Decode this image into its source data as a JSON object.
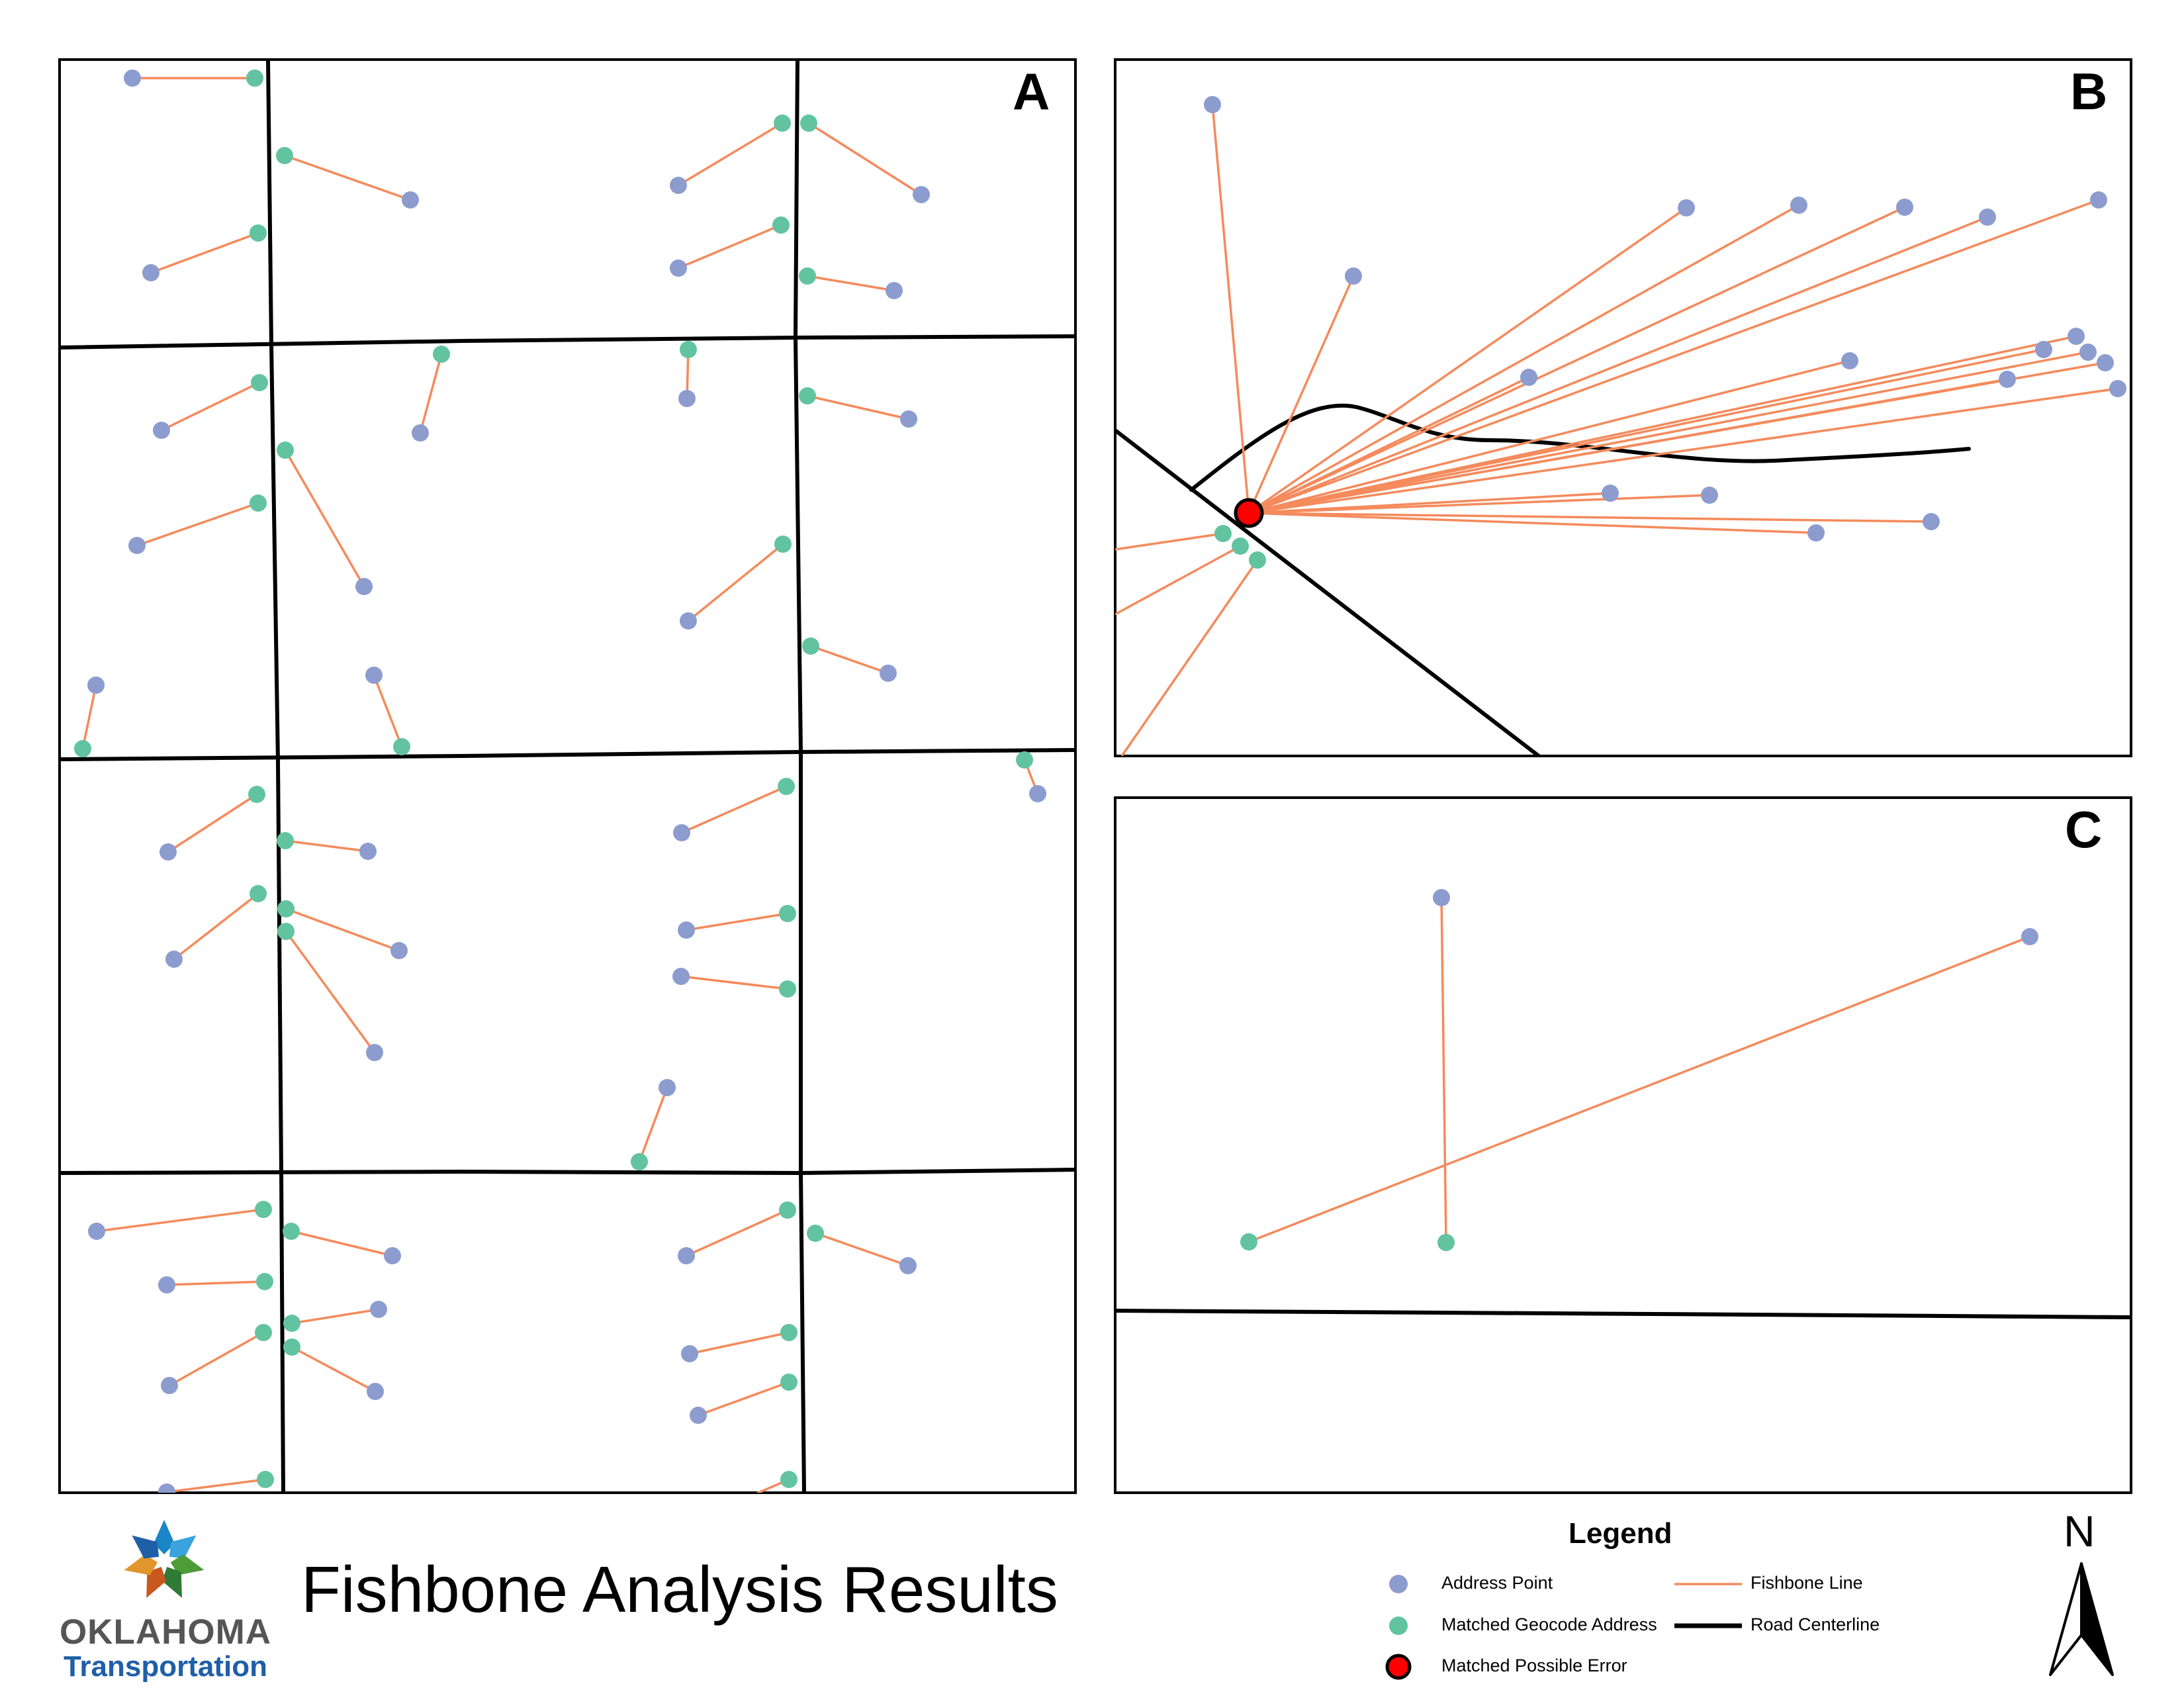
{
  "title": "Fishbone Analysis Results",
  "logo": {
    "wordmark": "OKLAHOMA",
    "subtitle": "Transportation"
  },
  "colors": {
    "address_point": "#8c9ccf",
    "matched_geocode": "#62c3a0",
    "fishbone_line": "#f58a5c",
    "road_centerline": "#000000",
    "possible_error": "#ff0000"
  },
  "legend": {
    "title": "Legend",
    "items": [
      {
        "label": "Address Point",
        "symbol": "address-point"
      },
      {
        "label": "Fishbone Line",
        "symbol": "fishbone-line"
      },
      {
        "label": "Matched Geocode Address",
        "symbol": "matched-geocode"
      },
      {
        "label": "Road Centerline",
        "symbol": "road-centerline"
      },
      {
        "label": "Matched Possible Error",
        "symbol": "possible-error"
      }
    ]
  },
  "north_arrow": {
    "label": "N"
  },
  "panels": [
    {
      "id": "A",
      "label": "A",
      "description_icon": "street-grid-map"
    },
    {
      "id": "B",
      "label": "B",
      "description_icon": "cluster-error-map"
    },
    {
      "id": "C",
      "label": "C",
      "description_icon": "crossing-lines-map"
    }
  ]
}
